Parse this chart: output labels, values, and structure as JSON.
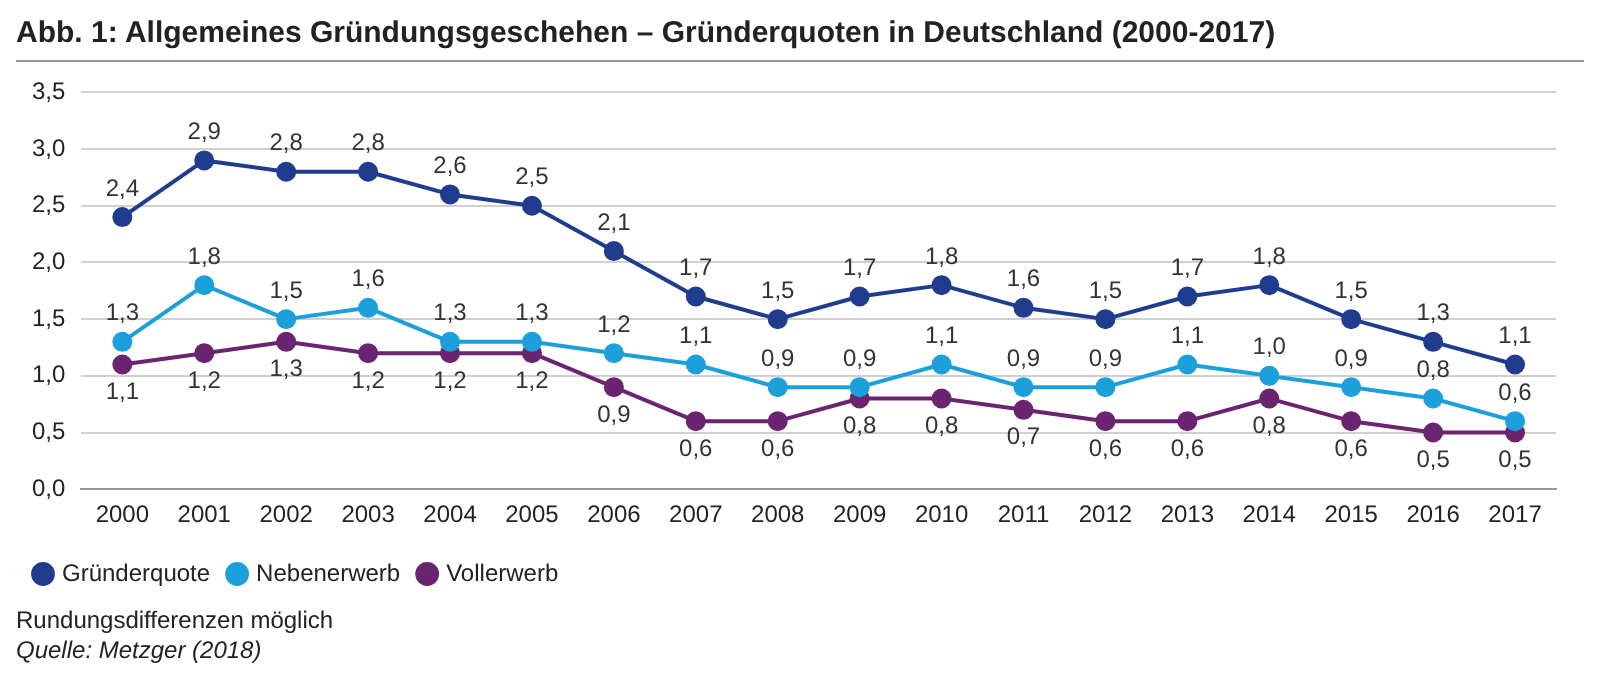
{
  "chart_data": {
    "type": "line",
    "title": "Abb. 1:  Allgemeines Gründungsgeschehen – Gründerquoten in Deutschland (2000-2017)",
    "categories": [
      "2000",
      "2001",
      "2002",
      "2003",
      "2004",
      "2005",
      "2006",
      "2007",
      "2008",
      "2009",
      "2010",
      "2011",
      "2012",
      "2013",
      "2014",
      "2015",
      "2016",
      "2017"
    ],
    "series": [
      {
        "name": "Gründerquote",
        "color": "#1f3c8f",
        "values": [
          2.4,
          2.9,
          2.8,
          2.8,
          2.6,
          2.5,
          2.1,
          1.7,
          1.5,
          1.7,
          1.8,
          1.6,
          1.5,
          1.7,
          1.8,
          1.5,
          1.3,
          1.1
        ],
        "value_labels": [
          "2,4",
          "2,9",
          "2,8",
          "2,8",
          "2,6",
          "2,5",
          "2,1",
          "1,7",
          "1,5",
          "1,7",
          "1,8",
          "1,6",
          "1,5",
          "1,7",
          "1,8",
          "1,5",
          "1,3",
          "1,1"
        ]
      },
      {
        "name": "Nebenerwerb",
        "color": "#1ca0dc",
        "values": [
          1.3,
          1.8,
          1.5,
          1.6,
          1.3,
          1.3,
          1.2,
          1.1,
          0.9,
          0.9,
          1.1,
          0.9,
          0.9,
          1.1,
          1.0,
          0.9,
          0.8,
          0.6
        ],
        "value_labels": [
          "1,3",
          "1,8",
          "1,5",
          "1,6",
          "1,3",
          "1,3",
          "1,2",
          "1,1",
          "0,9",
          "0,9",
          "1,1",
          "0,9",
          "0,9",
          "1,1",
          "1,0",
          "0,9",
          "0,8",
          "0,6"
        ]
      },
      {
        "name": "Vollerwerb",
        "color": "#6a2470",
        "values": [
          1.1,
          1.2,
          1.3,
          1.2,
          1.2,
          1.2,
          0.9,
          0.6,
          0.6,
          0.8,
          0.8,
          0.7,
          0.6,
          0.6,
          0.8,
          0.6,
          0.5,
          0.5
        ],
        "value_labels": [
          "1,1",
          "1,2",
          "1,3",
          "1,2",
          "1,2",
          "1,2",
          "0,9",
          "0,6",
          "0,6",
          "0,8",
          "0,8",
          "0,7",
          "0,6",
          "0,6",
          "0,8",
          "0,6",
          "0,5",
          "0,5"
        ]
      }
    ],
    "ylim": [
      0,
      3.5
    ],
    "yticks": [
      {
        "value": 0,
        "label": "0,0"
      },
      {
        "value": 0.5,
        "label": "0,5"
      },
      {
        "value": 1,
        "label": "1,0"
      },
      {
        "value": 1.5,
        "label": "1,5"
      },
      {
        "value": 2,
        "label": "2,0"
      },
      {
        "value": 2.5,
        "label": "2,5"
      },
      {
        "value": 3,
        "label": "3,0"
      },
      {
        "value": 3.5,
        "label": "3,5"
      }
    ],
    "grid": "y",
    "legend": "bottom left",
    "marker": "circle",
    "line_style": "solid",
    "annotations": [
      "Rundungsdifferenzen möglich",
      "Quelle: Metzger (2018)"
    ]
  }
}
